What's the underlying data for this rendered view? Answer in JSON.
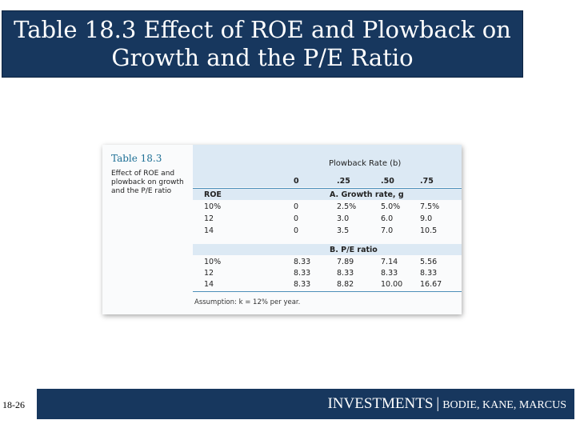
{
  "slide": {
    "title_line1": "Table 18.3 Effect of ROE and Plowback on",
    "title_line2": "Growth and the P/E Ratio",
    "page_number": "18-26"
  },
  "table": {
    "label": "Table 18.3",
    "caption": "Effect of ROE and plowback on growth and the P/E ratio",
    "plowback_header": "Plowback Rate (b)",
    "columns": [
      "0",
      ".25",
      ".50",
      ".75"
    ],
    "roe_header": "ROE",
    "section_a": "A. Growth rate, g",
    "section_b": "B. P/E ratio",
    "growth_rows": [
      [
        "10%",
        "0",
        "2.5%",
        "5.0%",
        "7.5%"
      ],
      [
        "12",
        "0",
        "3.0",
        "6.0",
        "9.0"
      ],
      [
        "14",
        "0",
        "3.5",
        "7.0",
        "10.5"
      ]
    ],
    "pe_rows": [
      [
        "10%",
        "8.33",
        "7.89",
        "7.14",
        "5.56"
      ],
      [
        "12",
        "8.33",
        "8.33",
        "8.33",
        "8.33"
      ],
      [
        "14",
        "8.33",
        "8.82",
        "10.00",
        "16.67"
      ]
    ],
    "assumption": "Assumption: k = 12% per year."
  },
  "footer": {
    "main": "INVESTMENTS",
    "separator": "|",
    "authors": "BODIE, KANE, MARCUS"
  }
}
